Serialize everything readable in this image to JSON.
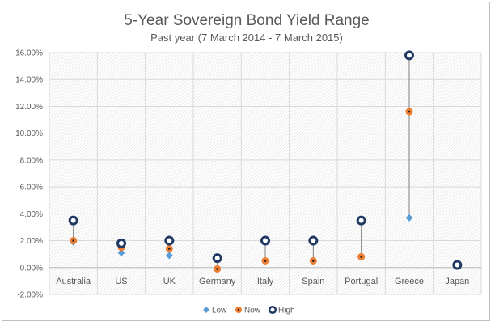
{
  "chart_data": {
    "type": "scatter",
    "title": "5-Year Sovereign Bond Yield Range",
    "subtitle": "Past year (7 March 2014 - 7 March 2015)",
    "categories": [
      "Australia",
      "US",
      "UK",
      "Germany",
      "Italy",
      "Spain",
      "Portugal",
      "Greece",
      "Japan"
    ],
    "series": [
      {
        "name": "Low",
        "values": [
          1.9,
          1.1,
          0.9,
          -0.1,
          0.5,
          0.5,
          0.8,
          3.7,
          0.1
        ]
      },
      {
        "name": "Now",
        "values": [
          2.0,
          1.5,
          1.4,
          -0.1,
          0.5,
          0.5,
          0.8,
          11.6,
          0.1
        ]
      },
      {
        "name": "High",
        "values": [
          3.5,
          1.8,
          2.0,
          0.7,
          2.0,
          2.0,
          3.5,
          15.8,
          0.2
        ]
      }
    ],
    "ylim": [
      -2,
      16
    ],
    "yticks": [
      "-2.00%",
      "0.00%",
      "2.00%",
      "4.00%",
      "6.00%",
      "8.00%",
      "10.00%",
      "12.00%",
      "14.00%",
      "16.00%"
    ],
    "ytick_values": [
      -2,
      0,
      2,
      4,
      6,
      8,
      10,
      12,
      14,
      16
    ],
    "grid": true,
    "legend_position": "bottom",
    "colors": {
      "Low": "#5b9bd5",
      "Now": "#ed7d31",
      "High": "#1f3864",
      "range_line": "#7f7f7f",
      "grid": "#d9d9d9"
    }
  }
}
